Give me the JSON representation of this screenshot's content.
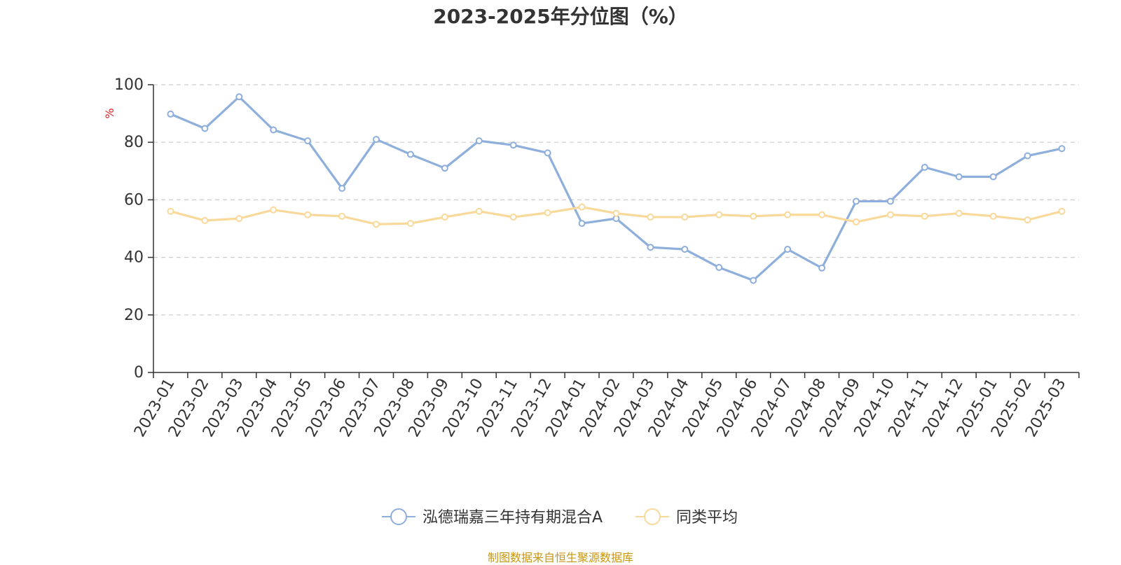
{
  "chart_data": {
    "type": "line",
    "title": "2023-2025年分位图（%）",
    "ylabel": "%",
    "ylim": [
      0,
      100
    ],
    "yticks": [
      "0",
      "20",
      "40",
      "60",
      "80",
      "100"
    ],
    "grid": true,
    "legend_position": "bottom-center",
    "categories": [
      "2023-01",
      "2023-02",
      "2023-03",
      "2023-04",
      "2023-05",
      "2023-06",
      "2023-07",
      "2023-08",
      "2023-09",
      "2023-10",
      "2023-11",
      "2023-12",
      "2024-01",
      "2024-02",
      "2024-03",
      "2024-04",
      "2024-05",
      "2024-06",
      "2024-07",
      "2024-08",
      "2024-09",
      "2024-10",
      "2024-11",
      "2024-12",
      "2025-01",
      "2025-02",
      "2025-03"
    ],
    "series": [
      {
        "name": "泓德瑞嘉三年持有期混合A",
        "color": "#8eaedb",
        "values": [
          89.8,
          84.8,
          95.8,
          84.3,
          80.5,
          64.0,
          81.0,
          75.8,
          71.0,
          80.5,
          79.0,
          76.3,
          51.8,
          53.5,
          43.5,
          42.8,
          36.5,
          32.0,
          42.8,
          36.3,
          59.5,
          59.5,
          71.3,
          68.0,
          68.0,
          75.3,
          77.8
        ]
      },
      {
        "name": "同类平均",
        "color": "#f9d99a",
        "values": [
          56.0,
          52.8,
          53.5,
          56.5,
          54.8,
          54.3,
          51.5,
          51.8,
          54.0,
          56.0,
          54.0,
          55.5,
          57.5,
          55.3,
          54.0,
          54.0,
          54.8,
          54.3,
          54.8,
          54.8,
          52.3,
          54.8,
          54.3,
          55.3,
          54.3,
          53.0,
          56.0
        ]
      }
    ]
  },
  "source_note": "制图数据来自恒生聚源数据库",
  "colors": {
    "ylabel": "#e02020",
    "source_note": "#c8960c",
    "grid": "#cccccc",
    "axis": "#333333"
  }
}
